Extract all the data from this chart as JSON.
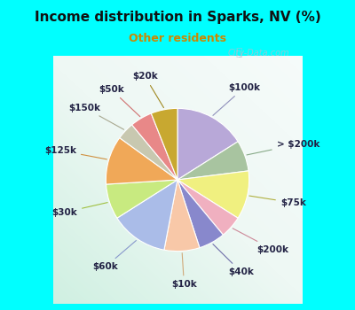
{
  "title": "Income distribution in Sparks, NV (%)",
  "subtitle": "Other residents",
  "title_color": "#111111",
  "subtitle_color": "#cc8800",
  "bg_outer": "#00ffff",
  "bg_inner_tl": "#e8f5f0",
  "bg_inner_br": "#f8fefe",
  "watermark": "City-Data.com",
  "labels": [
    "$100k",
    "> $200k",
    "$75k",
    "$200k",
    "$40k",
    "$10k",
    "$60k",
    "$30k",
    "$125k",
    "$150k",
    "$50k",
    "$20k"
  ],
  "values": [
    16,
    7,
    11,
    5,
    6,
    8,
    13,
    8,
    11,
    4,
    5,
    6
  ],
  "colors": [
    "#b8a8d8",
    "#a8c4a0",
    "#f0f080",
    "#f0b0c0",
    "#8888cc",
    "#f8c8a8",
    "#aabce8",
    "#c8ea80",
    "#f0a858",
    "#c8c8b0",
    "#e88888",
    "#c8a830"
  ],
  "line_colors": [
    "#9090bb",
    "#88aa88",
    "#b0b040",
    "#cc8898",
    "#7070aa",
    "#d0a878",
    "#8898cc",
    "#a0c040",
    "#d09040",
    "#a8a890",
    "#d07070",
    "#a08820"
  ],
  "label_fontsize": 7.5,
  "figsize": [
    4.0,
    3.5
  ],
  "dpi": 100
}
